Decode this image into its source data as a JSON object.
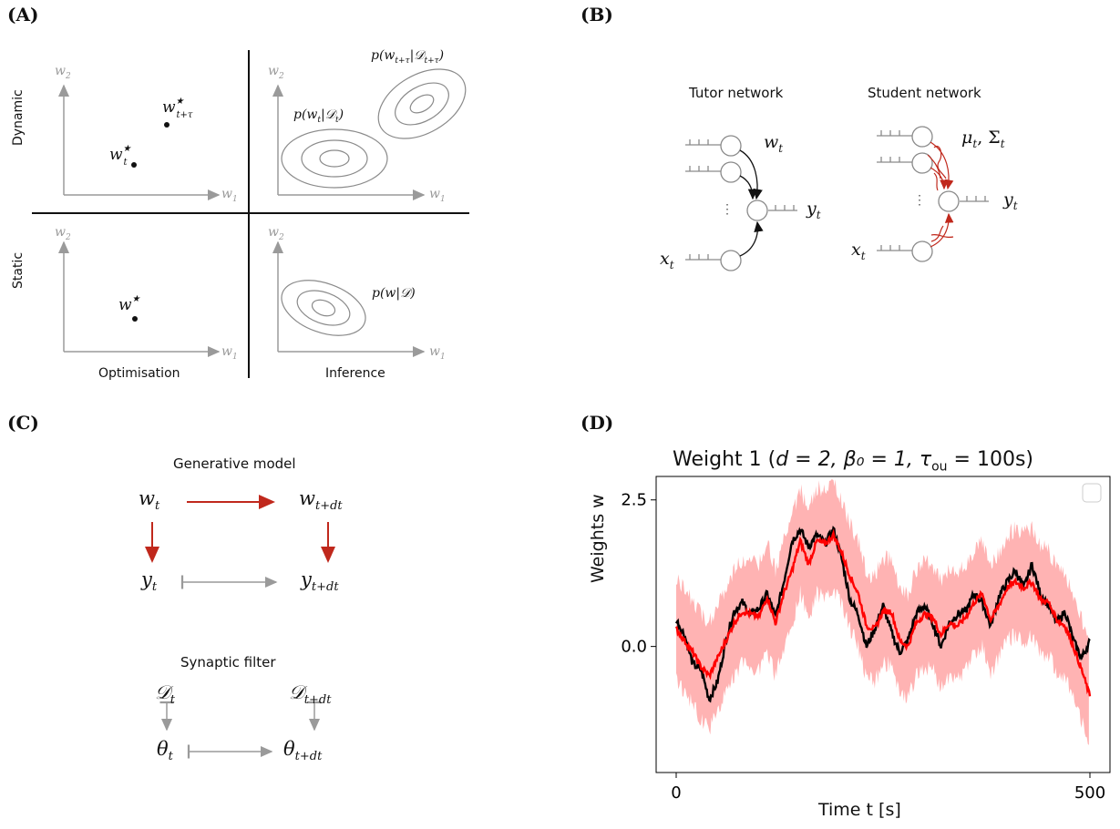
{
  "panels": {
    "a": {
      "label": "(A)",
      "row_dynamic": "Dynamic",
      "row_static": "Static",
      "col_optimisation": "Optimisation",
      "col_inference": "Inference",
      "axis_w1": "w",
      "axis_w1_sub": "1",
      "axis_w2": "w",
      "axis_w2_sub": "2",
      "pt_wt": "w",
      "pt_wt_sup": "★",
      "pt_wt_sub": "t",
      "pt_wtt": "w",
      "pt_wtt_sup": "★",
      "pt_wtt_sub": "t+τ",
      "pt_w": "w",
      "pt_w_sup": "★",
      "dist_t": "p(w",
      "dist_t_sub": "t",
      "dist_t_mid": "|𝒟",
      "dist_t_sub2": "t",
      "dist_t_end": ")",
      "dist_tt": "p(w",
      "dist_tt_sub": "t+τ",
      "dist_tt_mid": "|𝒟",
      "dist_tt_sub2": "t+τ",
      "dist_tt_end": ")",
      "dist_static": "p(w|𝒟)"
    },
    "b": {
      "label": "(B)",
      "tutor_title": "Tutor network",
      "student_title": "Student network",
      "wt": "w",
      "wt_sub": "t",
      "yt": "y",
      "yt_sub": "t",
      "xt": "x",
      "xt_sub": "t",
      "mu_sigma": "μ",
      "mu_sub": "t",
      "sigma": ", Σ",
      "sigma_sub": "t",
      "dots": "⋮"
    },
    "c": {
      "label": "(C)",
      "gen_title": "Generative model",
      "filter_title": "Synaptic filter",
      "gen_w": "w",
      "gen_w_sub": "t",
      "gen_w2": "w",
      "gen_w2_sub": "t+dt",
      "gen_y": "y",
      "gen_y_sub": "t",
      "gen_y2": "y",
      "gen_y2_sub": "t+dt",
      "fil_d": "𝒟",
      "fil_d_sub": "t",
      "fil_d2": "𝒟",
      "fil_d2_sub": "t+dt",
      "fil_th": "θ",
      "fil_th_sub": "t",
      "fil_th2": "θ",
      "fil_th2_sub": "t+dt"
    },
    "d": {
      "label": "(D)"
    }
  },
  "colors": {
    "red": "#c0281c",
    "plot_red": "#ff0000",
    "band": "#ffb3b3",
    "gray": "#9a9a9a",
    "black": "#000000"
  },
  "chart_data": {
    "type": "line",
    "title_prefix": "Weight 1 (",
    "title_math": "d = 2, β₀ = 1, τ",
    "title_sub": "ou",
    "title_suffix": " = 100s)",
    "xlabel": "Time t [s]",
    "ylabel": "Weights w",
    "xlim": [
      0,
      500
    ],
    "ylim": [
      -2.15,
      2.9
    ],
    "xticks": [
      0,
      500
    ],
    "yticks": [
      0.0,
      2.5
    ],
    "ytick_labels": [
      "0.0",
      "2.5"
    ],
    "xtick_labels": [
      "0",
      "500"
    ],
    "legend": "empty box, top-right",
    "series": [
      {
        "role": "ground truth",
        "color": "#000000",
        "x": [
          0,
          10,
          20,
          30,
          40,
          50,
          60,
          70,
          80,
          90,
          100,
          110,
          120,
          130,
          140,
          150,
          160,
          170,
          180,
          190,
          200,
          210,
          220,
          230,
          240,
          250,
          260,
          270,
          280,
          290,
          300,
          310,
          320,
          330,
          340,
          350,
          360,
          370,
          380,
          390,
          400,
          410,
          420,
          430,
          440,
          450,
          460,
          470,
          480,
          490,
          500
        ],
        "values": [
          0.45,
          0.2,
          -0.3,
          -0.4,
          -0.9,
          -0.6,
          0.1,
          0.6,
          0.75,
          0.55,
          0.65,
          0.9,
          0.5,
          1.1,
          1.8,
          2.0,
          1.7,
          1.9,
          1.75,
          2.0,
          1.5,
          0.8,
          0.55,
          0.0,
          0.3,
          0.7,
          0.25,
          -0.1,
          0.1,
          0.55,
          0.7,
          0.4,
          0.0,
          0.4,
          0.55,
          0.6,
          0.9,
          0.75,
          0.35,
          0.85,
          1.1,
          1.3,
          1.0,
          1.4,
          0.9,
          0.7,
          0.4,
          0.6,
          0.1,
          -0.2,
          0.1
        ]
      },
      {
        "role": "posterior mean",
        "color": "#ff0000",
        "x": [
          0,
          10,
          20,
          30,
          40,
          50,
          60,
          70,
          80,
          90,
          100,
          110,
          120,
          130,
          140,
          150,
          160,
          170,
          180,
          190,
          200,
          210,
          220,
          230,
          240,
          250,
          260,
          270,
          280,
          290,
          300,
          310,
          320,
          330,
          340,
          350,
          360,
          370,
          380,
          390,
          400,
          410,
          420,
          430,
          440,
          450,
          460,
          470,
          480,
          490,
          500
        ],
        "values": [
          0.3,
          0.1,
          -0.1,
          -0.35,
          -0.5,
          -0.2,
          0.1,
          0.4,
          0.6,
          0.55,
          0.5,
          0.85,
          0.4,
          0.9,
          1.3,
          1.8,
          1.4,
          1.8,
          1.75,
          1.9,
          1.6,
          1.2,
          0.9,
          0.35,
          0.3,
          0.6,
          0.6,
          0.1,
          0.0,
          0.4,
          0.55,
          0.5,
          0.2,
          0.4,
          0.35,
          0.5,
          0.75,
          0.9,
          0.45,
          0.7,
          1.0,
          1.1,
          1.0,
          1.1,
          0.8,
          0.75,
          0.45,
          0.35,
          0.0,
          -0.4,
          -0.85
        ]
      }
    ],
    "band_halfwidth": 1.0
  }
}
